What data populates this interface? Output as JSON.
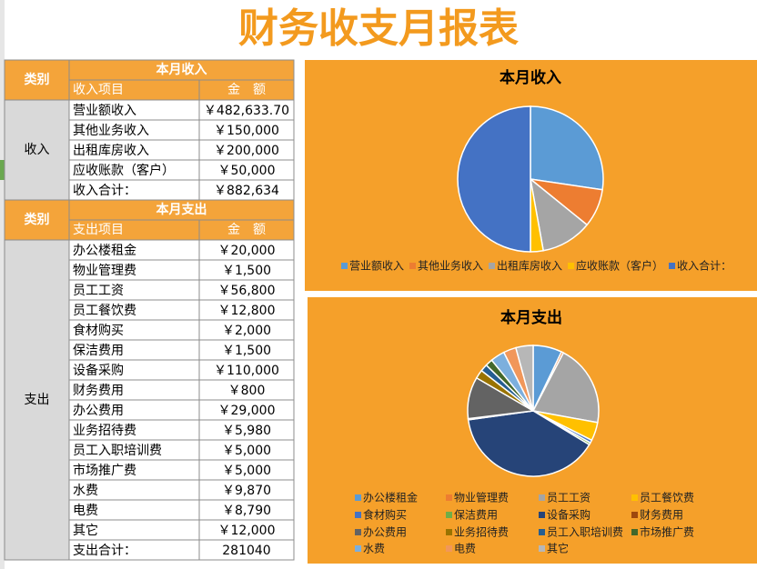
{
  "title": "财务收支月报表",
  "income": {
    "category_header": "类别",
    "section_header": "本月收入",
    "item_header": "收入项目",
    "amount_header": "金　额",
    "category": "收入",
    "rows": [
      {
        "item": "营业额收入",
        "amount": 482633.7,
        "label": "￥482,633.70"
      },
      {
        "item": "其他业务收入",
        "amount": 150000,
        "label": "￥150,000"
      },
      {
        "item": "出租库房收入",
        "amount": 200000,
        "label": "￥200,000"
      },
      {
        "item": "应收账款（客户）",
        "amount": 50000,
        "label": "￥50,000"
      },
      {
        "item": "收入合计：",
        "amount": 882634,
        "label": "￥882,634"
      }
    ],
    "chart_type": "pie",
    "colors": [
      "#5B9BD5",
      "#ED7D31",
      "#A5A5A5",
      "#FFC000",
      "#4472C4"
    ]
  },
  "expense": {
    "category_header": "类别",
    "section_header": "本月支出",
    "item_header": "支出项目",
    "amount_header": "金　额",
    "category": "支出",
    "rows": [
      {
        "item": "办公楼租金",
        "amount": 20000,
        "label": "￥20,000"
      },
      {
        "item": "物业管理费",
        "amount": 1500,
        "label": "￥1,500"
      },
      {
        "item": "员工工资",
        "amount": 56800,
        "label": "￥56,800"
      },
      {
        "item": "员工餐饮费",
        "amount": 12800,
        "label": "￥12,800"
      },
      {
        "item": "食材购买",
        "amount": 2000,
        "label": "￥2,000"
      },
      {
        "item": "保洁费用",
        "amount": 1500,
        "label": "￥1,500"
      },
      {
        "item": "设备采购",
        "amount": 110000,
        "label": "￥110,000"
      },
      {
        "item": "财务费用",
        "amount": 800,
        "label": "￥800"
      },
      {
        "item": "办公费用",
        "amount": 29000,
        "label": "￥29,000"
      },
      {
        "item": "业务招待费",
        "amount": 5980,
        "label": "￥5,980"
      },
      {
        "item": "员工入职培训费",
        "amount": 5000,
        "label": "￥5,000"
      },
      {
        "item": "市场推广费",
        "amount": 5000,
        "label": "￥5,000"
      },
      {
        "item": "水费",
        "amount": 9870,
        "label": "￥9,870"
      },
      {
        "item": "电费",
        "amount": 8790,
        "label": "￥8,790"
      },
      {
        "item": "其它",
        "amount": 12000,
        "label": "￥12,000"
      }
    ],
    "total": {
      "item": "支出合计：",
      "amount": 281040
    },
    "chart_type": "pie",
    "colors": [
      "#5B9BD5",
      "#ED7D31",
      "#A5A5A5",
      "#FFC000",
      "#4472C4",
      "#70AD47",
      "#264478",
      "#9E480E",
      "#636363",
      "#997300",
      "#255E91",
      "#43682B",
      "#7CAFDD",
      "#F1975A",
      "#B7B7B7"
    ]
  }
}
